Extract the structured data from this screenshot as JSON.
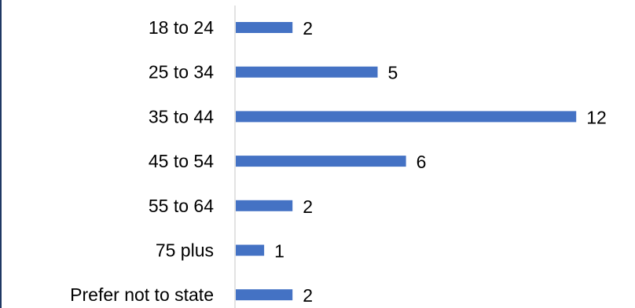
{
  "chart_data": {
    "type": "bar",
    "orientation": "horizontal",
    "categories": [
      "18 to 24",
      "25 to 34",
      "35 to 44",
      "45 to 54",
      "55 to 64",
      "75 plus",
      "Prefer not to state"
    ],
    "values": [
      2,
      5,
      12,
      6,
      2,
      1,
      2
    ],
    "data_labels": [
      "2",
      "5",
      "12",
      "6",
      "2",
      "1",
      "2"
    ],
    "title": "",
    "xlabel": "",
    "ylabel": "",
    "xlim": [
      0,
      12
    ],
    "grid": false,
    "legend": "none",
    "bar_color": "#4472c4",
    "axis_color": "#d9d9d9",
    "text_color": "#000000"
  }
}
